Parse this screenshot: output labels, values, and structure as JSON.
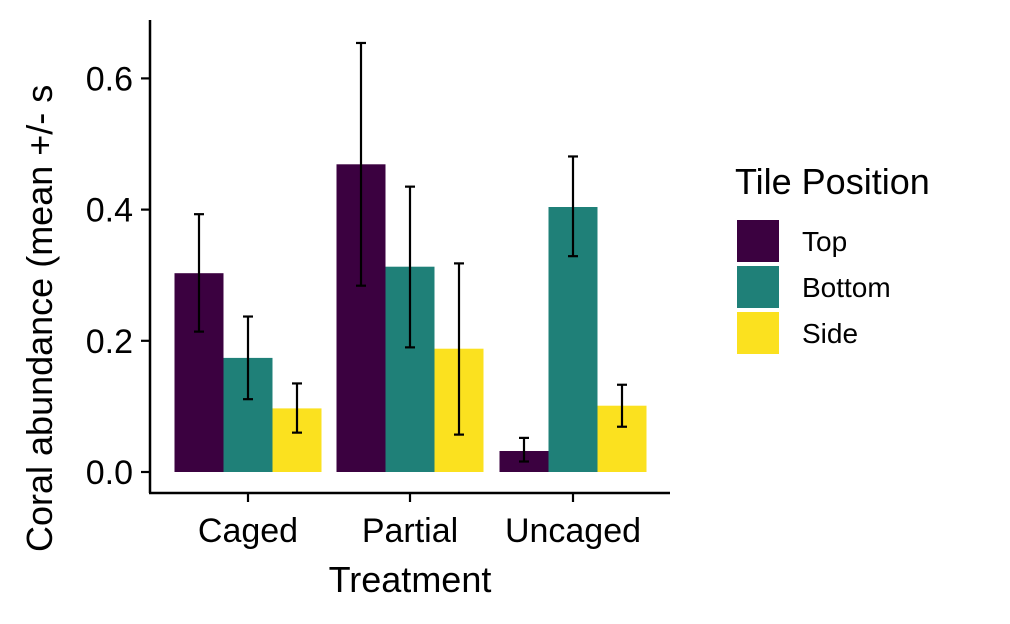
{
  "chart_data": {
    "type": "bar",
    "title": "",
    "xlabel": "Treatment",
    "ylabel": "Coral abundance (mean +/- s",
    "categories": [
      "Caged",
      "Partial",
      "Uncaged"
    ],
    "ylim": [
      0,
      0.68
    ],
    "yticks": [
      {
        "value": 0.0,
        "label": "0.0"
      },
      {
        "value": 0.2,
        "label": "0.2"
      },
      {
        "value": 0.4,
        "label": "0.4"
      },
      {
        "value": 0.6,
        "label": "0.6"
      }
    ],
    "grid": false,
    "legend": {
      "title": "Tile Position",
      "placement": "right"
    },
    "series": [
      {
        "name": "Top",
        "color": "#3b0140",
        "values": [
          0.303,
          0.469,
          0.032
        ],
        "err_low": [
          0.214,
          0.284,
          0.016
        ],
        "err_high": [
          0.393,
          0.654,
          0.052
        ]
      },
      {
        "name": "Bottom",
        "color": "#1f8078",
        "values": [
          0.174,
          0.313,
          0.404
        ],
        "err_low": [
          0.111,
          0.19,
          0.329
        ],
        "err_high": [
          0.237,
          0.435,
          0.481
        ]
      },
      {
        "name": "Side",
        "color": "#fbe11f",
        "values": [
          0.097,
          0.188,
          0.101
        ],
        "err_low": [
          0.06,
          0.057,
          0.069
        ],
        "err_high": [
          0.135,
          0.318,
          0.133
        ]
      }
    ]
  }
}
